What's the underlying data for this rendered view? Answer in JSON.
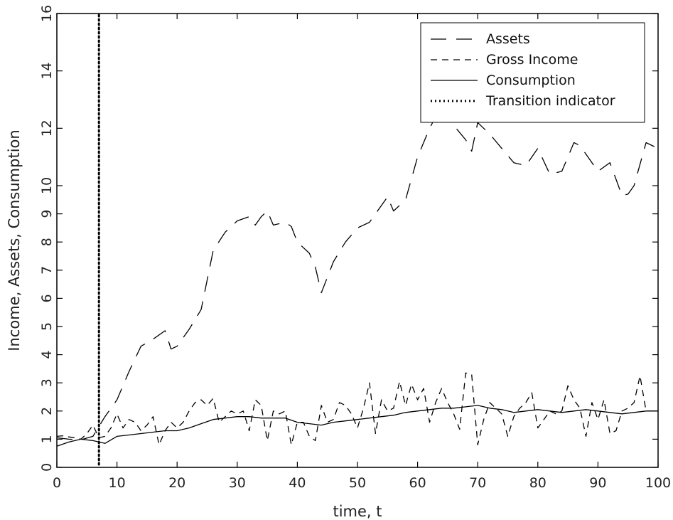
{
  "chart_data": {
    "type": "line",
    "title": "",
    "xlabel": "time, t",
    "ylabel": "Income, Assets, Consumption",
    "xlim": [
      0,
      100
    ],
    "ylim_segments": [
      {
        "from": 0,
        "to": 10,
        "ticks": [
          0,
          1,
          2,
          3,
          4,
          5,
          6,
          7,
          8,
          9,
          10
        ]
      },
      {
        "from": 10,
        "to": 16,
        "ticks": [
          12,
          14,
          16
        ]
      }
    ],
    "x_ticks": [
      0,
      10,
      20,
      30,
      40,
      50,
      60,
      70,
      80,
      90,
      100
    ],
    "x_tick_labels": [
      "0",
      "10",
      "20",
      "30",
      "40",
      "50",
      "60",
      "70",
      "80",
      "90",
      "100"
    ],
    "y_tick_labels": [
      "0",
      "1",
      "2",
      "3",
      "4",
      "5",
      "6",
      "7",
      "8",
      "9",
      "10",
      "12",
      "14",
      "16"
    ],
    "grid": false,
    "legend": "top-right",
    "transition_x": 7,
    "series": [
      {
        "name": "Assets",
        "style": "long-dash",
        "x": [
          0,
          2,
          4,
          6,
          8,
          10,
          12,
          14,
          16,
          18,
          19,
          20,
          22,
          24,
          26,
          28,
          30,
          32,
          33,
          34,
          35,
          36,
          38,
          39,
          40,
          42,
          43,
          44,
          46,
          48,
          50,
          52,
          54,
          55,
          56,
          58,
          60,
          62,
          64,
          66,
          68,
          69,
          70,
          72,
          74,
          76,
          78,
          80,
          82,
          84,
          86,
          87,
          88,
          90,
          92,
          94,
          95,
          96,
          98,
          100
        ],
        "values": [
          1.05,
          1.0,
          0.98,
          1.1,
          1.8,
          2.4,
          3.4,
          4.3,
          4.55,
          4.85,
          4.2,
          4.3,
          4.9,
          5.6,
          7.7,
          8.35,
          8.75,
          8.9,
          8.6,
          8.9,
          9.1,
          8.6,
          8.7,
          8.55,
          8.0,
          7.6,
          7.1,
          6.2,
          7.3,
          8.0,
          8.5,
          8.7,
          9.3,
          9.6,
          9.1,
          9.5,
          11.0,
          12.0,
          12.8,
          12.1,
          11.6,
          11.2,
          12.2,
          11.8,
          11.3,
          10.8,
          10.7,
          11.3,
          10.4,
          10.5,
          11.5,
          11.4,
          11.1,
          10.5,
          10.8,
          9.65,
          9.7,
          10.0,
          11.5,
          11.3
        ]
      },
      {
        "name": "Gross Income",
        "style": "short-dash",
        "x": [
          0,
          1,
          2,
          3,
          4,
          5,
          6,
          7,
          8,
          9,
          10,
          11,
          12,
          13,
          14,
          15,
          16,
          17,
          18,
          19,
          20,
          21,
          22,
          23,
          24,
          25,
          26,
          27,
          28,
          29,
          30,
          31,
          32,
          33,
          34,
          35,
          36,
          37,
          38,
          39,
          40,
          41,
          42,
          43,
          44,
          45,
          46,
          47,
          48,
          49,
          50,
          51,
          52,
          53,
          54,
          55,
          56,
          57,
          58,
          59,
          60,
          61,
          62,
          63,
          64,
          65,
          66,
          67,
          68,
          69,
          70,
          71,
          72,
          73,
          74,
          75,
          76,
          77,
          78,
          79,
          80,
          81,
          82,
          83,
          84,
          85,
          86,
          87,
          88,
          89,
          90,
          91,
          92,
          93,
          94,
          95,
          96,
          97,
          98,
          99,
          100
        ],
        "values": [
          1.1,
          1.12,
          1.08,
          1.05,
          1.0,
          1.2,
          1.5,
          1.05,
          1.1,
          1.4,
          1.9,
          1.4,
          1.7,
          1.6,
          1.3,
          1.5,
          1.8,
          0.8,
          1.3,
          1.6,
          1.4,
          1.6,
          2.0,
          2.3,
          2.4,
          2.2,
          2.45,
          1.6,
          1.8,
          2.0,
          1.9,
          2.0,
          1.3,
          2.4,
          2.2,
          0.95,
          2.0,
          1.9,
          2.0,
          0.8,
          1.6,
          1.6,
          1.1,
          0.95,
          2.2,
          1.6,
          1.7,
          2.3,
          2.2,
          1.9,
          1.4,
          2.1,
          3.0,
          1.2,
          2.4,
          2.0,
          2.1,
          3.05,
          2.2,
          2.95,
          2.4,
          2.8,
          1.6,
          2.3,
          2.8,
          2.3,
          1.9,
          1.35,
          3.35,
          3.3,
          0.8,
          1.7,
          2.3,
          2.1,
          1.9,
          1.1,
          1.8,
          2.1,
          2.3,
          2.65,
          1.4,
          1.7,
          2.0,
          1.9,
          2.0,
          2.9,
          2.4,
          2.1,
          1.1,
          2.3,
          1.7,
          2.4,
          1.2,
          1.3,
          2.0,
          2.1,
          2.3,
          3.25,
          2.0,
          2.0,
          2.0
        ]
      },
      {
        "name": "Consumption",
        "style": "solid",
        "x": [
          0,
          2,
          4,
          6,
          8,
          10,
          12,
          14,
          16,
          18,
          20,
          22,
          24,
          26,
          28,
          30,
          32,
          34,
          36,
          38,
          40,
          42,
          44,
          46,
          48,
          50,
          52,
          54,
          56,
          58,
          60,
          62,
          64,
          66,
          68,
          70,
          72,
          74,
          76,
          78,
          80,
          82,
          84,
          86,
          88,
          90,
          92,
          94,
          96,
          98,
          100
        ],
        "values": [
          0.75,
          0.9,
          1.0,
          0.95,
          0.85,
          1.1,
          1.15,
          1.2,
          1.25,
          1.3,
          1.3,
          1.4,
          1.55,
          1.7,
          1.75,
          1.8,
          1.8,
          1.75,
          1.75,
          1.75,
          1.6,
          1.55,
          1.5,
          1.6,
          1.65,
          1.7,
          1.75,
          1.8,
          1.85,
          1.95,
          2.0,
          2.05,
          2.1,
          2.1,
          2.15,
          2.2,
          2.1,
          2.05,
          1.95,
          2.0,
          2.05,
          2.0,
          1.95,
          2.0,
          2.05,
          2.0,
          1.95,
          1.9,
          1.95,
          2.0,
          2.0
        ]
      }
    ],
    "legend_entries": [
      {
        "label": "Assets",
        "style": "long-dash"
      },
      {
        "label": "Gross Income",
        "style": "short-dash"
      },
      {
        "label": "Consumption",
        "style": "solid"
      },
      {
        "label": "Transition indicator",
        "style": "dotted"
      }
    ]
  }
}
